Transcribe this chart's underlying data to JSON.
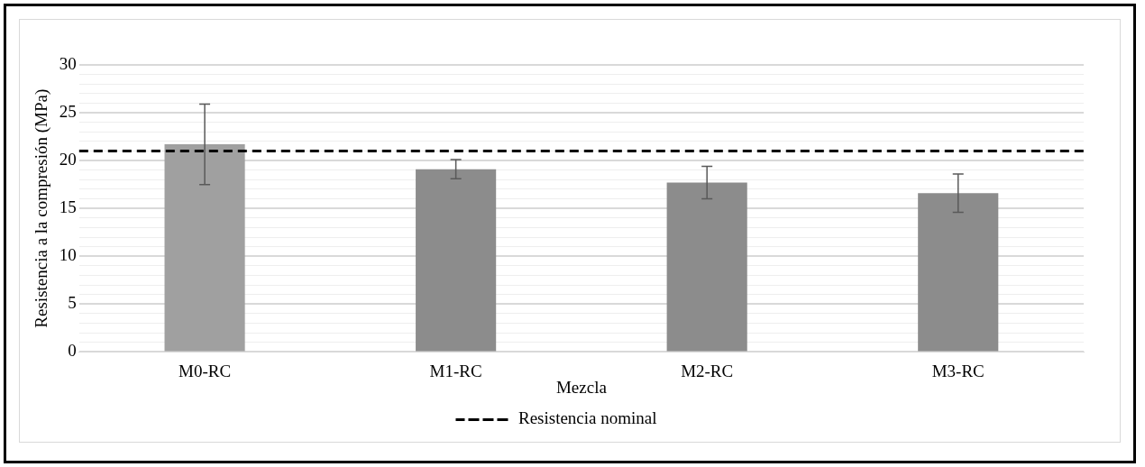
{
  "chart_data": {
    "type": "bar",
    "categories": [
      "M0-RC",
      "M1-RC",
      "M2-RC",
      "M3-RC"
    ],
    "values": [
      21.7,
      19.1,
      17.7,
      16.6
    ],
    "errors": [
      4.2,
      1.0,
      1.7,
      2.0
    ],
    "colors": [
      "#a0a0a0",
      "#8c8c8c",
      "#8c8c8c",
      "#8c8c8c"
    ],
    "xlabel": "Mezcla",
    "ylabel": "Resistencia a la compresión (MPa)",
    "ylim": [
      0,
      30
    ],
    "yticks": [
      0,
      {
        "value": 1,
        "label": null
      },
      {
        "value": 2,
        "label": null
      },
      {
        "value": 3,
        "label": null
      },
      {
        "value": 4,
        "label": null
      },
      5,
      {
        "value": 6,
        "label": null
      },
      {
        "value": 7,
        "label": null
      },
      {
        "value": 8,
        "label": null
      },
      {
        "value": 9,
        "label": null
      },
      10,
      {
        "value": 11,
        "label": null
      },
      {
        "value": 12,
        "label": null
      },
      {
        "value": 13,
        "label": null
      },
      {
        "value": 14,
        "label": null
      },
      15,
      {
        "value": 16,
        "label": null
      },
      {
        "value": 17,
        "label": null
      },
      {
        "value": 18,
        "label": null
      },
      {
        "value": 19,
        "label": null
      },
      20,
      {
        "value": 21,
        "label": null
      },
      {
        "value": 22,
        "label": null
      },
      {
        "value": 23,
        "label": null
      },
      {
        "value": 24,
        "label": null
      },
      25,
      {
        "value": 26,
        "label": null
      },
      {
        "value": 27,
        "label": null
      },
      {
        "value": 28,
        "label": null
      },
      {
        "value": 29,
        "label": null
      },
      30
    ],
    "ref_lines": [
      {
        "axis": "y",
        "value": 21,
        "label": "Resistencia nominal",
        "color": "#000000",
        "line_style": "dashed"
      }
    ],
    "grid": "y",
    "legend": "bottom"
  }
}
